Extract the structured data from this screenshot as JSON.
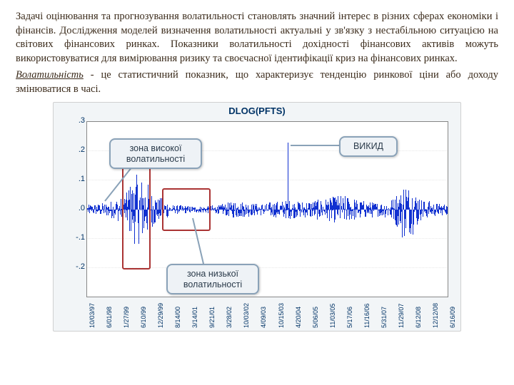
{
  "text": {
    "para1": "Задачі оцінювання та прогнозування волатильності становлять значний інтерес в різних сферах економіки і фінансів. Дослідження моделей визначення волатильності актуальні у зв'язку з нестабільною ситуацією на світових фінансових ринках. Показники волатильності дохідності фінансових активів можуть використовуватися для вимірювання ризику та своєчасної ідентифікації криз на фінансових ринках.",
    "term": "Волатильність",
    "para2_rest": " - це статистичний показник, що характеризує тенденцію ринкової ціни або доходу змінюватися в часі."
  },
  "chart": {
    "title": "DLOG(PFTS)",
    "type": "line",
    "ylim": [
      -0.3,
      0.3
    ],
    "yticks": [
      -0.2,
      -0.1,
      0.0,
      0.1,
      0.2,
      0.3
    ],
    "ytick_labels": [
      "-.2",
      "-.1",
      ".0",
      ".1",
      ".2",
      ".3"
    ],
    "xlabels": [
      "10/03/97",
      "6/01/98",
      "1/27/99",
      "6/10/99",
      "12/29/99",
      "8/14/00",
      "3/14/01",
      "9/21/01",
      "3/28/02",
      "10/03/02",
      "4/09/03",
      "10/15/03",
      "4/20/04",
      "5/06/05",
      "11/03/05",
      "5/17/06",
      "11/16/06",
      "5/31/07",
      "11/29/07",
      "6/12/08",
      "12/12/08",
      "6/16/09"
    ],
    "background_color": "#f2f5f7",
    "plot_background": "#ffffff",
    "series_color": "#1030d0",
    "grid_color": "rgba(100,100,100,0.15)",
    "title_color": "#003366",
    "tick_color": "#003366",
    "tick_fontsize": 11,
    "xtick_fontsize": 9,
    "callouts": {
      "high": "зона високої волатильності",
      "low": "зона низької волатильності",
      "outlier": "ВИКИД"
    },
    "callout_style": {
      "background": "#eef2f6",
      "border_color": "#8aa2b8",
      "text_color": "#2a3a4a",
      "fontsize": 12.5
    },
    "zone_box_color": "#aa3333",
    "volatility_profile": [
      0.018,
      0.02,
      0.022,
      0.025,
      0.03,
      0.04,
      0.06,
      0.09,
      0.12,
      0.11,
      0.09,
      0.06,
      0.04,
      0.03,
      0.016,
      0.015,
      0.014,
      0.013,
      0.012,
      0.012,
      0.013,
      0.014,
      0.015,
      0.02,
      0.025,
      0.03,
      0.028,
      0.025,
      0.022,
      0.02,
      0.022,
      0.025,
      0.028,
      0.03,
      0.032,
      0.03,
      0.028,
      0.03,
      0.032,
      0.035,
      0.038,
      0.04,
      0.045,
      0.05,
      0.048,
      0.04,
      0.035,
      0.03,
      0.028,
      0.025,
      0.025,
      0.03,
      0.04,
      0.06,
      0.1,
      0.085,
      0.06,
      0.04,
      0.03,
      0.025,
      0.022,
      0.02
    ],
    "outlier": {
      "index": 34,
      "value": 0.23
    }
  }
}
